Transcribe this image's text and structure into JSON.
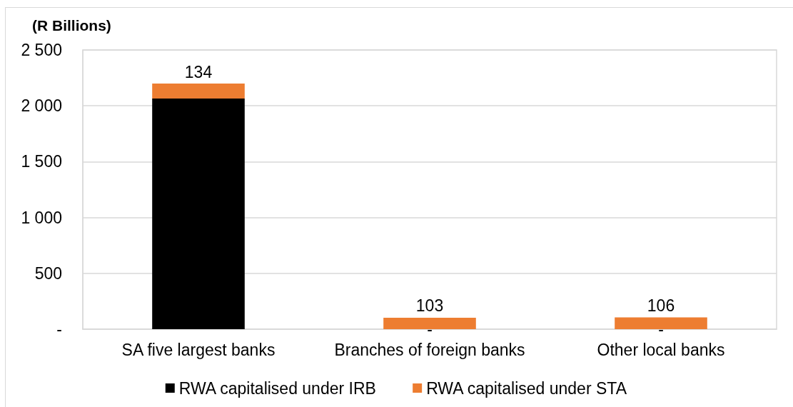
{
  "chart_data": {
    "type": "bar",
    "ylabel": "(R Billions)",
    "categories": [
      "SA five largest banks",
      "Branches of foreign banks",
      "Other local banks"
    ],
    "series": [
      {
        "name": "RWA capitalised under IRB",
        "color": "#000000",
        "values": [
          2065,
          0,
          0
        ],
        "value_labels": [
          null,
          "-",
          "-"
        ]
      },
      {
        "name": "RWA capitalised under STA",
        "color": "#ed7d31",
        "values": [
          134,
          103,
          106
        ],
        "value_labels": [
          "134",
          "103",
          "106"
        ]
      }
    ],
    "stacked": true,
    "ylim": [
      0,
      2500
    ],
    "yticks": [
      {
        "value": 0,
        "label": "-"
      },
      500,
      {
        "value": 1000,
        "label": "1 000"
      },
      {
        "value": 1500,
        "label": "1 500"
      },
      {
        "value": 2000,
        "label": "2 000"
      },
      {
        "value": 2500,
        "label": "2 500"
      }
    ],
    "grid": "y",
    "legend": "bottom"
  }
}
